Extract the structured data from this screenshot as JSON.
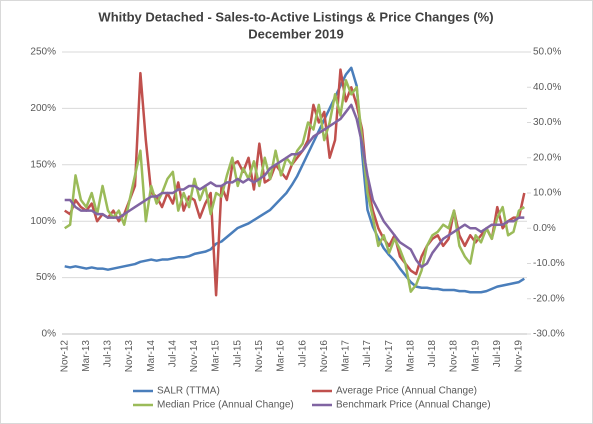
{
  "chart_data": {
    "type": "line",
    "title": "Whitby Detached - Sales-to-Active Listings & Price Changes (%)",
    "subtitle": "December 2019",
    "categories": [
      "Nov-12",
      null,
      null,
      null,
      "Mar-13",
      null,
      null,
      null,
      "Jul-13",
      null,
      null,
      null,
      "Nov-13",
      null,
      null,
      null,
      "Mar-14",
      null,
      null,
      null,
      "Jul-14",
      null,
      null,
      null,
      "Nov-14",
      null,
      null,
      null,
      "Mar-15",
      null,
      null,
      null,
      "Jul-15",
      null,
      null,
      null,
      "Nov-15",
      null,
      null,
      null,
      "Mar-16",
      null,
      null,
      null,
      "Jul-16",
      null,
      null,
      null,
      "Nov-16",
      null,
      null,
      null,
      "Mar-17",
      null,
      null,
      null,
      "Jul-17",
      null,
      null,
      null,
      "Nov-17",
      null,
      null,
      null,
      "Mar-18",
      null,
      null,
      null,
      "Jul-18",
      null,
      null,
      null,
      "Nov-18",
      null,
      null,
      null,
      "Mar-19",
      null,
      null,
      null,
      "Jul-19",
      null,
      null,
      null,
      "Nov-19",
      null
    ],
    "series": [
      {
        "name": "SALR (TTMA)",
        "color": "#4a7ebb",
        "axis": "y",
        "values": [
          60,
          59,
          60,
          59,
          58,
          59,
          58,
          58,
          57,
          58,
          59,
          60,
          61,
          62,
          64,
          65,
          66,
          65,
          66,
          66,
          67,
          68,
          68,
          69,
          71,
          72,
          73,
          75,
          80,
          82,
          86,
          90,
          94,
          96,
          98,
          101,
          104,
          107,
          110,
          115,
          120,
          125,
          132,
          140,
          150,
          160,
          170,
          180,
          190,
          200,
          210,
          220,
          230,
          236,
          220,
          160,
          110,
          95,
          85,
          76,
          70,
          65,
          58,
          52,
          46,
          42,
          41,
          41,
          40,
          40,
          39,
          39,
          39,
          38,
          38,
          37,
          37,
          37,
          38,
          40,
          42,
          43,
          44,
          45,
          46,
          49
        ]
      },
      {
        "name": "Average Price (Annual Change)",
        "color": "#c0504d",
        "axis": "y2",
        "values": [
          5,
          4,
          8,
          6,
          5,
          7,
          2,
          4,
          3,
          5,
          2,
          4,
          8,
          12,
          44,
          25,
          10,
          9,
          6,
          10,
          7,
          13,
          5,
          9,
          8,
          3,
          7,
          10,
          -19,
          12,
          8,
          18,
          19,
          16,
          20,
          11,
          24,
          13,
          14,
          18,
          16,
          14,
          18,
          20,
          22,
          25,
          35,
          30,
          33,
          20,
          25,
          45,
          36,
          40,
          35,
          28,
          12,
          5,
          0,
          -3,
          -5,
          -2,
          -8,
          -10,
          -12,
          -13,
          -8,
          -5,
          -3,
          -2,
          -5,
          -3,
          5,
          -2,
          -5,
          -2,
          -4,
          -2,
          0,
          -3,
          6,
          0,
          2,
          3,
          3,
          10
        ]
      },
      {
        "name": "Median Price (Annual Change)",
        "color": "#9bbb59",
        "axis": "y2",
        "values": [
          0,
          1,
          15,
          8,
          6,
          10,
          4,
          12,
          5,
          3,
          5,
          1,
          8,
          15,
          22,
          2,
          12,
          7,
          10,
          14,
          16,
          5,
          10,
          6,
          14,
          8,
          12,
          4,
          10,
          9,
          15,
          20,
          12,
          17,
          14,
          19,
          12,
          20,
          14,
          22,
          15,
          20,
          18,
          22,
          24,
          30,
          28,
          35,
          25,
          30,
          38,
          32,
          42,
          38,
          40,
          25,
          10,
          3,
          -5,
          -2,
          -7,
          -3,
          -6,
          -10,
          -18,
          -16,
          -12,
          -5,
          -2,
          -1,
          1,
          0,
          5,
          -5,
          -8,
          -10,
          -2,
          -4,
          0,
          -3,
          3,
          6,
          -2,
          -1,
          5,
          6
        ]
      },
      {
        "name": "Benchmark Price (Annual Change)",
        "color": "#8064a2",
        "axis": "y2",
        "values": [
          8,
          8,
          6,
          5,
          5,
          5,
          4,
          4,
          3,
          3,
          3,
          4,
          5,
          6,
          7,
          8,
          9,
          9,
          10,
          10,
          10,
          11,
          11,
          12,
          12,
          11,
          12,
          13,
          12,
          12,
          13,
          13,
          14,
          13,
          14,
          13,
          14,
          15,
          17,
          18,
          19,
          20,
          21,
          21,
          22,
          24,
          26,
          27,
          28,
          29,
          30,
          31,
          33,
          35,
          31,
          24,
          15,
          8,
          5,
          2,
          0,
          -2,
          -4,
          -5,
          -6,
          -9,
          -11,
          -10,
          -7,
          -5,
          -3,
          -2,
          -1,
          0,
          1,
          0,
          0,
          -1,
          0,
          1,
          1,
          1,
          2,
          2,
          3,
          3
        ]
      }
    ],
    "ylim": [
      0,
      250
    ],
    "yticks": [
      {
        "value": 0,
        "label": "0%"
      },
      {
        "value": 50,
        "label": "50%"
      },
      {
        "value": 100,
        "label": "100%"
      },
      {
        "value": 150,
        "label": "150%"
      },
      {
        "value": 200,
        "label": "200%"
      },
      {
        "value": 250,
        "label": "250%"
      }
    ],
    "y2lim": [
      -30,
      50
    ],
    "y2ticks": [
      {
        "value": -30,
        "label": "-30.0%"
      },
      {
        "value": -20,
        "label": "-20.0%"
      },
      {
        "value": -10,
        "label": "-10.0%"
      },
      {
        "value": 0,
        "label": "0.0%"
      },
      {
        "value": 10,
        "label": "10.0%"
      },
      {
        "value": 20,
        "label": "20.0%"
      },
      {
        "value": 30,
        "label": "30.0%"
      },
      {
        "value": 40,
        "label": "40.0%"
      },
      {
        "value": 50,
        "label": "50.0%"
      }
    ],
    "grid": true
  }
}
